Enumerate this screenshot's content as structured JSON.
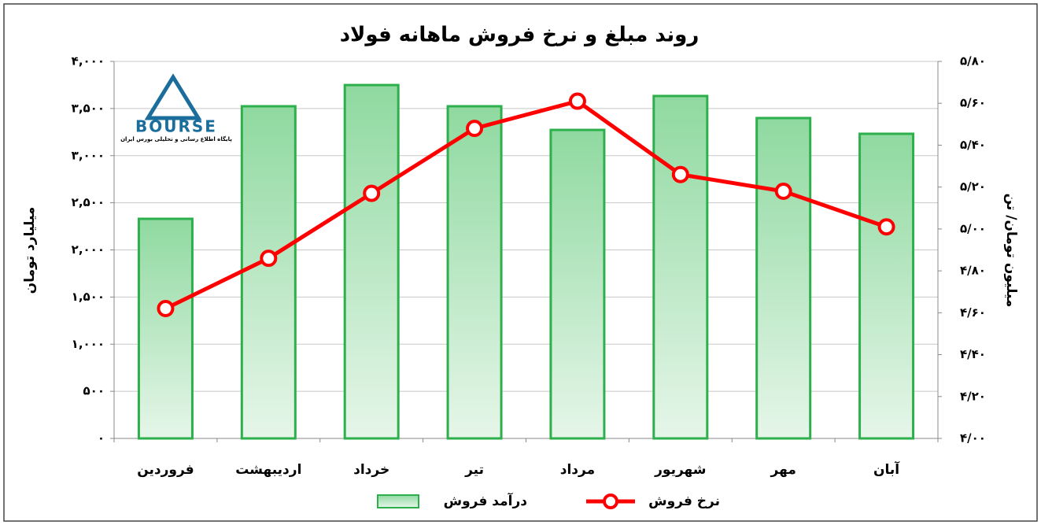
{
  "chart_data": {
    "type": "bar",
    "title": "روند مبلغ و نرخ فروش ماهانه فولاد",
    "ylabel": "میلیارد تومان",
    "y2label": "میلیون تومان/ تن",
    "categories": [
      "فروردین",
      "اردیبهشت",
      "خرداد",
      "تیر",
      "مرداد",
      "شهریور",
      "مهر",
      "آبان"
    ],
    "series": [
      {
        "name": "درآمد فروش",
        "type": "bar",
        "color": "#2db04b",
        "values": [
          2330,
          3524,
          3749,
          3524,
          3273,
          3633,
          3399,
          3232
        ]
      },
      {
        "name": "نرخ فروش",
        "type": "line",
        "axis": "y2",
        "color": "#ff0000",
        "values": [
          4.62,
          4.86,
          5.17,
          5.48,
          5.61,
          5.26,
          5.18,
          5.01
        ]
      }
    ],
    "ylim": [
      0,
      4000
    ],
    "yticks": [
      {
        "value": 0,
        "label": "۰"
      },
      {
        "value": 500,
        "label": "۵۰۰"
      },
      {
        "value": 1000,
        "label": "۱,۰۰۰"
      },
      {
        "value": 1500,
        "label": "۱,۵۰۰"
      },
      {
        "value": 2000,
        "label": "۲,۰۰۰"
      },
      {
        "value": 2500,
        "label": "۲,۵۰۰"
      },
      {
        "value": 3000,
        "label": "۳,۰۰۰"
      },
      {
        "value": 3500,
        "label": "۳,۵۰۰"
      },
      {
        "value": 4000,
        "label": "۴,۰۰۰"
      }
    ],
    "y2lim": [
      4,
      5.8
    ],
    "y2ticks": [
      {
        "value": 4,
        "label": "۴/۰۰"
      },
      {
        "value": 4.2,
        "label": "۴/۲۰"
      },
      {
        "value": 4.4,
        "label": "۴/۴۰"
      },
      {
        "value": 4.6,
        "label": "۴/۶۰"
      },
      {
        "value": 4.8,
        "label": "۴/۸۰"
      },
      {
        "value": 5,
        "label": "۵/۰۰"
      },
      {
        "value": 5.2,
        "label": "۵/۲۰"
      },
      {
        "value": 5.4,
        "label": "۵/۴۰"
      },
      {
        "value": 5.6,
        "label": "۵/۶۰"
      },
      {
        "value": 5.8,
        "label": "۵/۸۰"
      }
    ],
    "grid": true
  },
  "logo": {
    "text": "BOURSE",
    "subtitle": "پایگاه اطلاع رسانی و تحلیلی بورس ایران"
  }
}
